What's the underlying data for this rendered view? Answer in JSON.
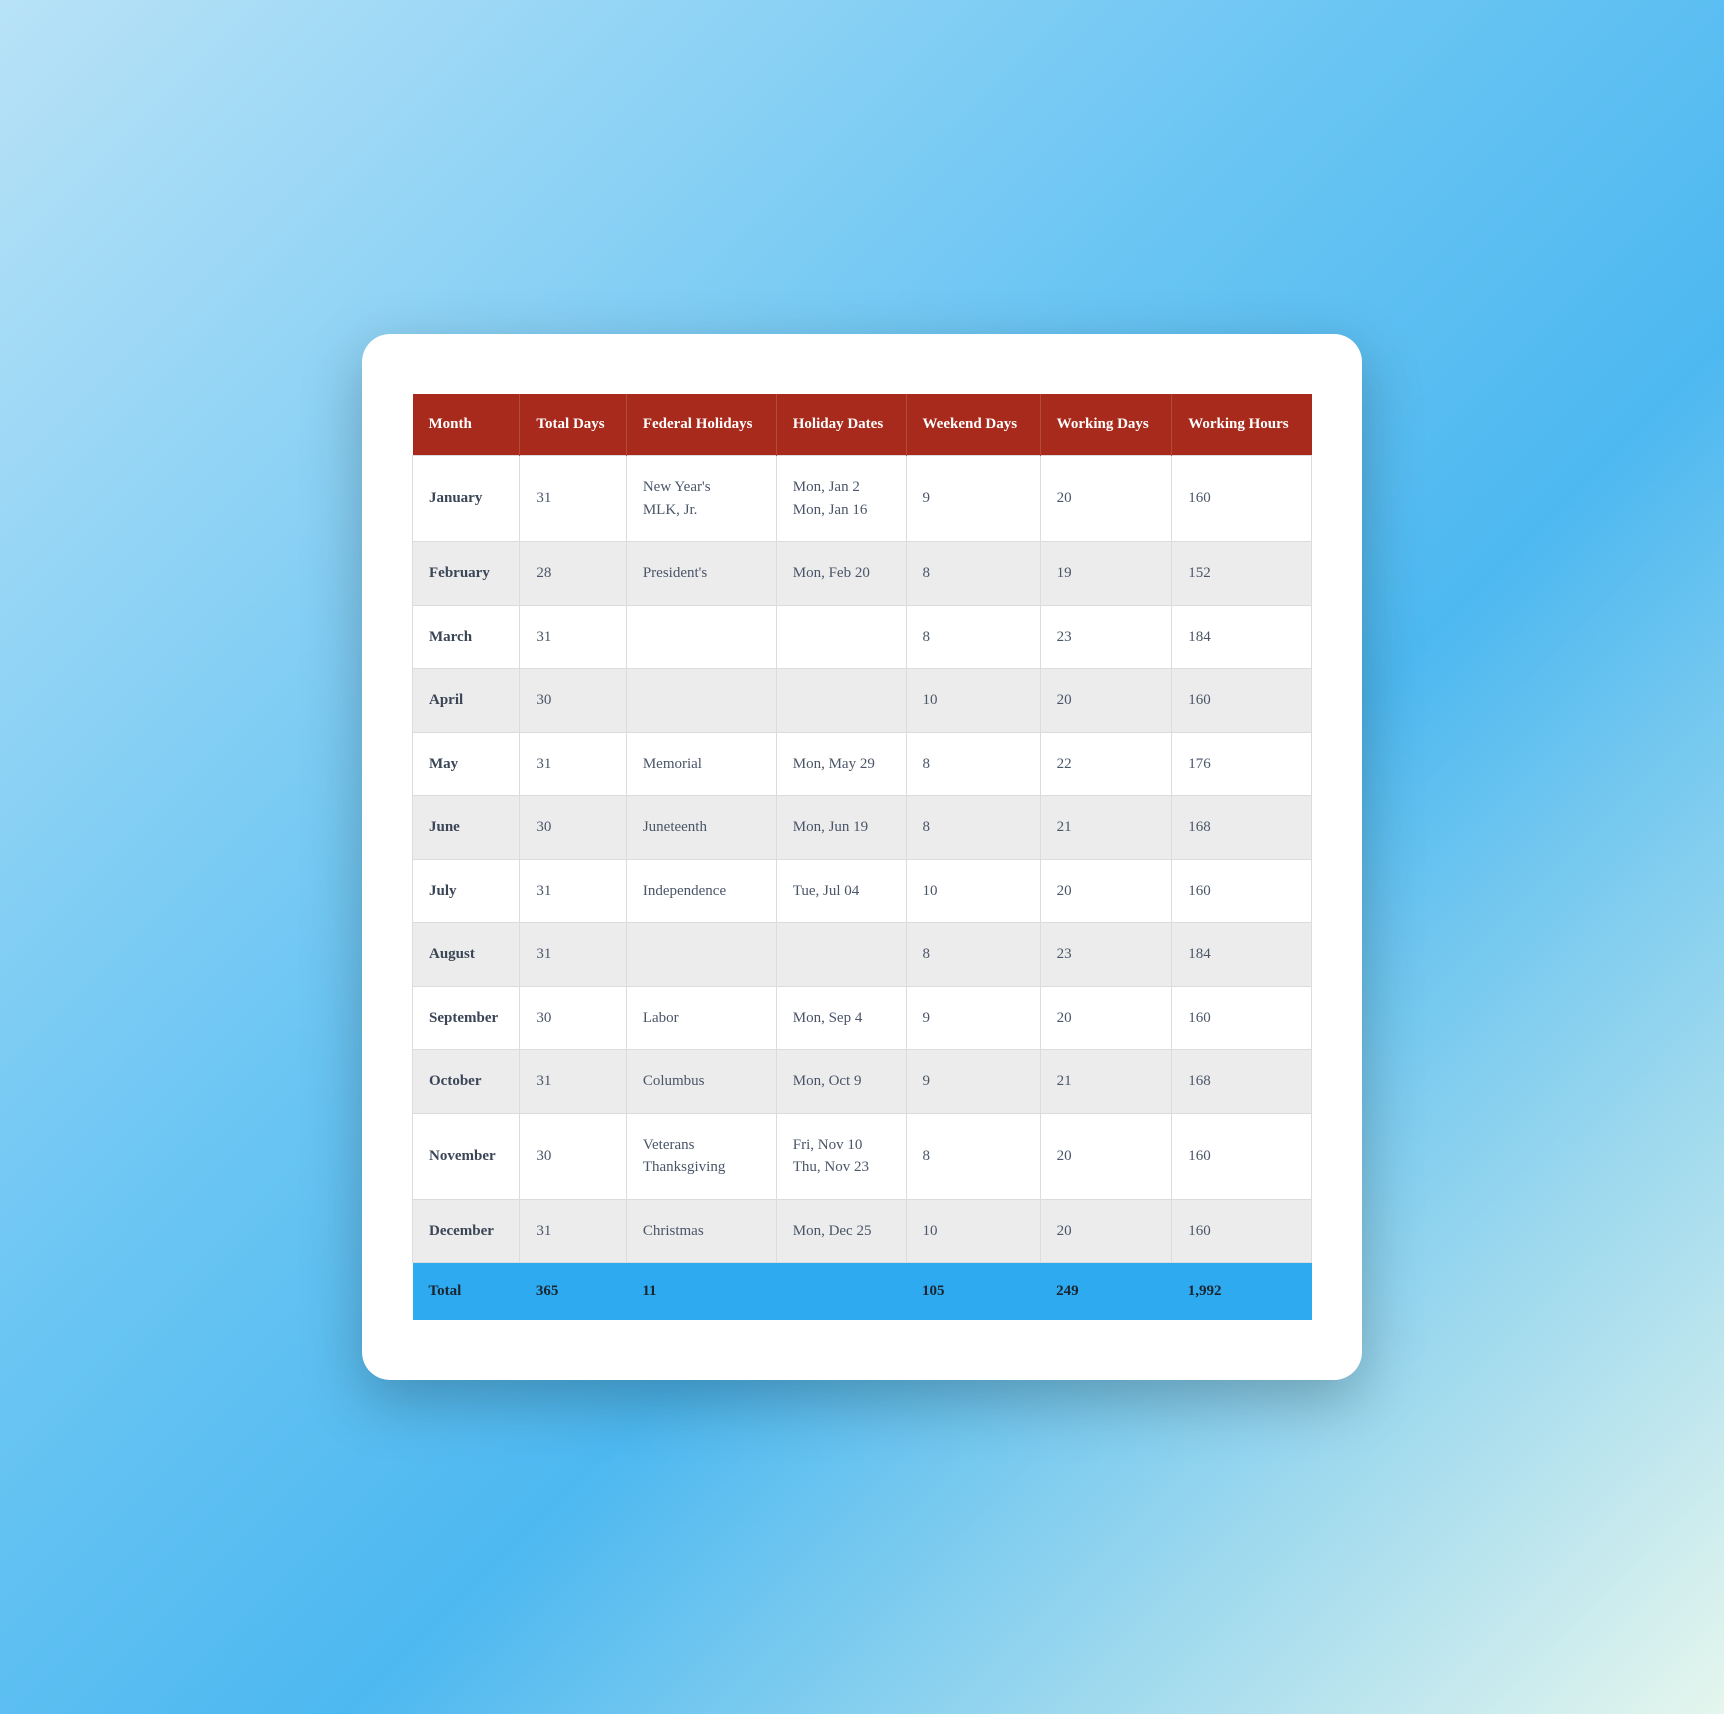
{
  "table": {
    "type": "table",
    "header_bg": "#a72a1c",
    "header_text_color": "#ffffff",
    "row_odd_bg": "#ffffff",
    "row_even_bg": "#ececec",
    "total_row_bg": "#2eaaf0",
    "border_color": "#dcdcdc",
    "text_color": "#4a5568",
    "font_family": "Georgia, serif",
    "font_size_pt": 11,
    "columns": [
      {
        "key": "month",
        "label": "Month"
      },
      {
        "key": "total_days",
        "label": "Total Days"
      },
      {
        "key": "federal_holidays",
        "label": "Federal Holidays"
      },
      {
        "key": "holiday_dates",
        "label": "Holiday Dates"
      },
      {
        "key": "weekend_days",
        "label": "Weekend Days"
      },
      {
        "key": "working_days",
        "label": "Working Days"
      },
      {
        "key": "working_hours",
        "label": "Working Hours"
      }
    ],
    "rows": [
      {
        "month": "January",
        "total_days": "31",
        "federal_holidays": "New Year's\nMLK, Jr.",
        "holiday_dates": "Mon, Jan 2\nMon, Jan 16",
        "weekend_days": "9",
        "working_days": "20",
        "working_hours": "160"
      },
      {
        "month": "February",
        "total_days": "28",
        "federal_holidays": "President's",
        "holiday_dates": "Mon, Feb 20",
        "weekend_days": "8",
        "working_days": "19",
        "working_hours": "152"
      },
      {
        "month": "March",
        "total_days": "31",
        "federal_holidays": "",
        "holiday_dates": "",
        "weekend_days": "8",
        "working_days": "23",
        "working_hours": "184"
      },
      {
        "month": "April",
        "total_days": "30",
        "federal_holidays": "",
        "holiday_dates": "",
        "weekend_days": "10",
        "working_days": "20",
        "working_hours": "160"
      },
      {
        "month": "May",
        "total_days": "31",
        "federal_holidays": "Memorial",
        "holiday_dates": "Mon, May 29",
        "weekend_days": "8",
        "working_days": "22",
        "working_hours": "176"
      },
      {
        "month": "June",
        "total_days": "30",
        "federal_holidays": "Juneteenth",
        "holiday_dates": "Mon, Jun 19",
        "weekend_days": "8",
        "working_days": "21",
        "working_hours": "168"
      },
      {
        "month": "July",
        "total_days": "31",
        "federal_holidays": "Independence",
        "holiday_dates": "Tue, Jul 04",
        "weekend_days": "10",
        "working_days": "20",
        "working_hours": "160"
      },
      {
        "month": "August",
        "total_days": "31",
        "federal_holidays": "",
        "holiday_dates": "",
        "weekend_days": "8",
        "working_days": "23",
        "working_hours": "184"
      },
      {
        "month": "September",
        "total_days": "30",
        "federal_holidays": "Labor",
        "holiday_dates": "Mon, Sep 4",
        "weekend_days": "9",
        "working_days": "20",
        "working_hours": "160"
      },
      {
        "month": "October",
        "total_days": "31",
        "federal_holidays": "Columbus",
        "holiday_dates": "Mon, Oct 9",
        "weekend_days": "9",
        "working_days": "21",
        "working_hours": "168"
      },
      {
        "month": "November",
        "total_days": "30",
        "federal_holidays": "Veterans\nThanksgiving",
        "holiday_dates": "Fri, Nov 10\nThu, Nov 23",
        "weekend_days": "8",
        "working_days": "20",
        "working_hours": "160"
      },
      {
        "month": "December",
        "total_days": "31",
        "federal_holidays": "Christmas",
        "holiday_dates": "Mon, Dec 25",
        "weekend_days": "10",
        "working_days": "20",
        "working_hours": "160"
      }
    ],
    "totals": {
      "label": "Total",
      "total_days": "365",
      "federal_holidays": "11",
      "holiday_dates": "",
      "weekend_days": "105",
      "working_days": "249",
      "working_hours": "1,992"
    }
  },
  "page": {
    "background_gradient": [
      "#b8e2f7",
      "#6ac5f3",
      "#4db8f0",
      "#e5f6ed"
    ],
    "card_bg": "#ffffff",
    "card_border_radius": 28
  }
}
